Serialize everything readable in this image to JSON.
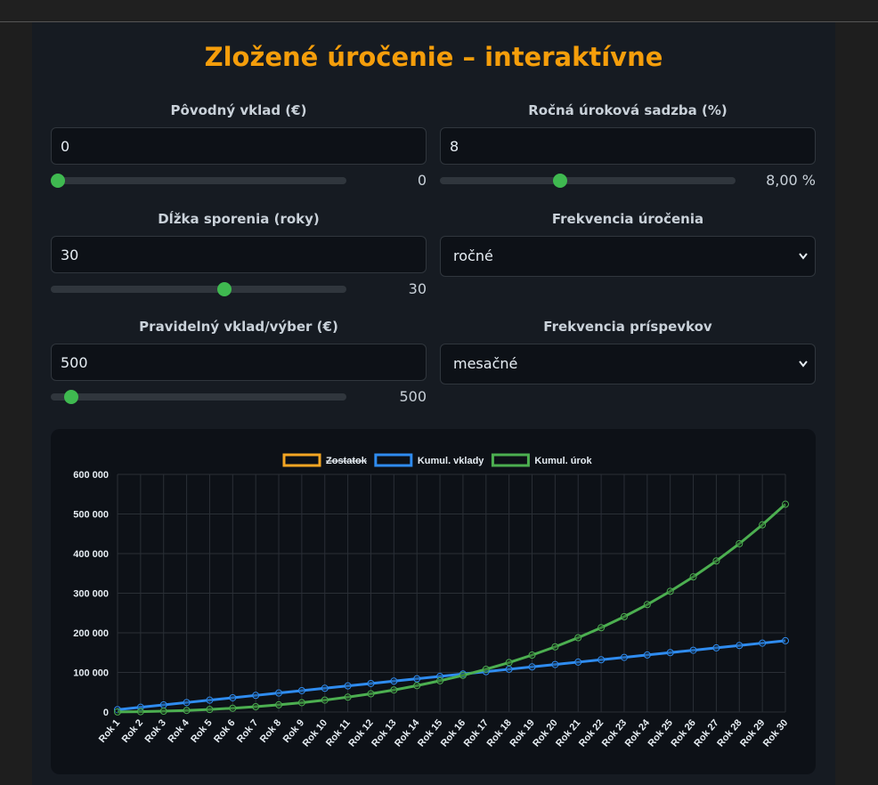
{
  "header": {
    "title": "Zložené úročenie – interaktívne"
  },
  "form": {
    "fields": [
      {
        "label": "Pôvodný vklad (€)",
        "value": "0",
        "display": "0"
      },
      {
        "label": "Ročná úroková sadzba (%)",
        "value": "8",
        "display": "8,00 %"
      },
      {
        "label": "Dĺžka sporenia (roky)",
        "value": "30",
        "display": "30"
      },
      {
        "label": "Frekvencia úročenia",
        "selected": "ročné"
      },
      {
        "label": "Pravidelný vklad/výber (€)",
        "value": "500",
        "display": "500"
      },
      {
        "label": "Frekvencia príspevkov",
        "selected": "mesačné"
      }
    ]
  },
  "chart_data": {
    "type": "line",
    "categories": [
      "Rok 1",
      "Rok 2",
      "Rok 3",
      "Rok 4",
      "Rok 5",
      "Rok 6",
      "Rok 7",
      "Rok 8",
      "Rok 9",
      "Rok 10",
      "Rok 11",
      "Rok 12",
      "Rok 13",
      "Rok 14",
      "Rok 15",
      "Rok 16",
      "Rok 17",
      "Rok 18",
      "Rok 19",
      "Rok 20",
      "Rok 21",
      "Rok 22",
      "Rok 23",
      "Rok 24",
      "Rok 25",
      "Rok 26",
      "Rok 27",
      "Rok 28",
      "Rok 29",
      "Rok 30"
    ],
    "series": [
      {
        "name": "Zostatok",
        "color": "#f5a623",
        "hidden": true
      },
      {
        "name": "Kumul. vklady",
        "color": "#2f8cf0",
        "values": [
          6000,
          12000,
          18000,
          24000,
          30000,
          36000,
          42000,
          48000,
          54000,
          60000,
          66000,
          72000,
          78000,
          84000,
          90000,
          96000,
          102000,
          108000,
          114000,
          120000,
          126000,
          132000,
          138000,
          144000,
          150000,
          156000,
          162000,
          168000,
          174000,
          180000
        ]
      },
      {
        "name": "Kumul. úrok",
        "color": "#4caf50",
        "values": [
          220,
          938,
          2193,
          4028,
          6490,
          9630,
          13500,
          18160,
          23673,
          30107,
          37535,
          46038,
          55701,
          66617,
          78886,
          92617,
          107927,
          124941,
          143796,
          164640,
          187631,
          212941,
          240757,
          271277,
          304719,
          341317,
          381322,
          425008,
          472669,
          524622
        ]
      }
    ],
    "ylim": [
      0,
      600000
    ],
    "yticks": [
      0,
      {
        "value": 100000,
        "label": "100 000"
      },
      {
        "value": 200000,
        "label": "200 000"
      },
      {
        "value": 300000,
        "label": "300 000"
      },
      {
        "value": 400000,
        "label": "400 000"
      },
      {
        "value": 500000,
        "label": "500 000"
      },
      {
        "value": 600000,
        "label": "600 000"
      }
    ],
    "grid": true,
    "legend": "top"
  }
}
